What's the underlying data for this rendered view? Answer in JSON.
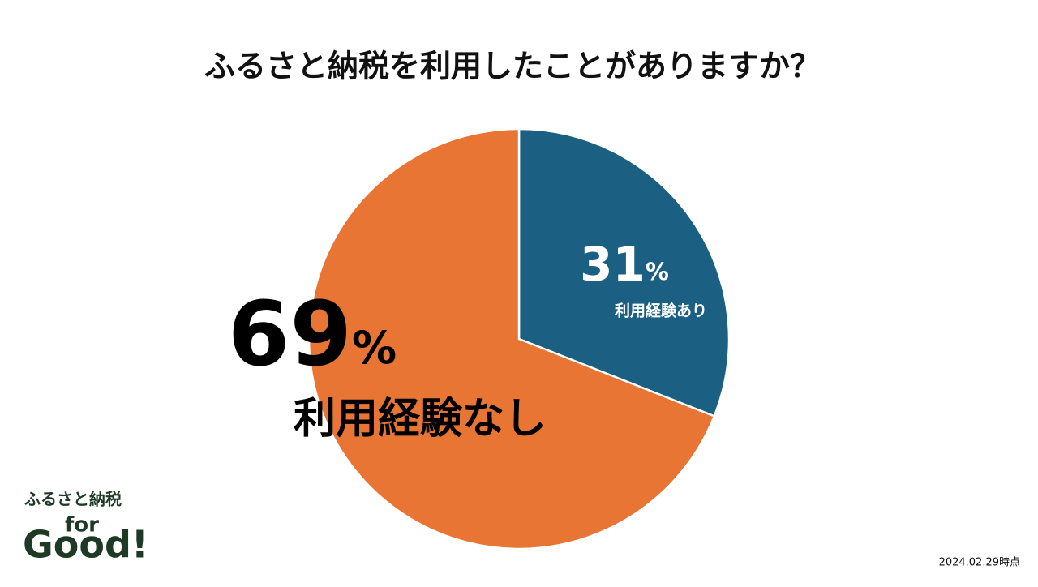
{
  "chart_data": {
    "type": "pie",
    "title": "ふるさと納税を利用したことがありますか？",
    "categories": [
      "利用経験あり",
      "利用経験なし"
    ],
    "values": [
      31,
      69
    ],
    "value_labels": [
      "31%",
      "69%"
    ],
    "colors": [
      "#1b5f82",
      "#e87534"
    ]
  },
  "logo": {
    "line1": "ふるさと納税",
    "line2": "for",
    "line3": "Good!"
  },
  "note": "2024.02.29時点"
}
